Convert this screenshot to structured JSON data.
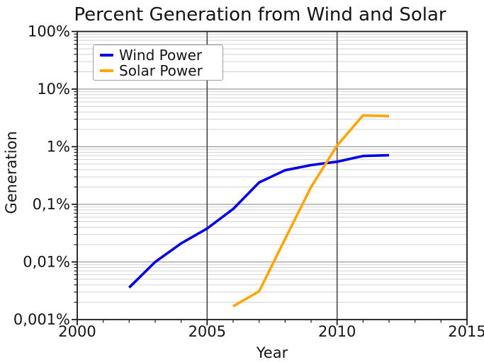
{
  "title": "Percent Generation from Wind and Solar",
  "chart_data": {
    "type": "line",
    "title": "Percent Generation from Wind and Solar",
    "xlabel": "Year",
    "ylabel": "Generation",
    "grid": true,
    "legend_position": "upper-left",
    "x_axis": {
      "min": 2000,
      "max": 2015,
      "major_ticks": [
        2000,
        2005,
        2010,
        2015
      ],
      "tick_labels": [
        "2000",
        "2005",
        "2010",
        "2015"
      ],
      "minor_tick_step_years": 1,
      "major_gridlines_at": [
        2005,
        2010
      ]
    },
    "y_axis": {
      "scale": "log",
      "min_pct": 0.001,
      "max_pct": 100,
      "major_ticks_pct": [
        100,
        10,
        1,
        0.1,
        0.01,
        0.001
      ],
      "tick_labels": [
        "100%",
        "10%",
        "1%",
        "0,1%",
        "0,01%",
        "0,001%"
      ],
      "decimal_separator": ","
    },
    "series": [
      {
        "name": "Wind Power",
        "color": "#0000e6",
        "x": [
          2002,
          2003,
          2004,
          2005,
          2006,
          2007,
          2008,
          2009,
          2010,
          2011,
          2012
        ],
        "values_pct": [
          0.0036,
          0.01,
          0.021,
          0.038,
          0.083,
          0.24,
          0.39,
          0.48,
          0.55,
          0.69,
          0.71
        ]
      },
      {
        "name": "Solar Power",
        "color": "#ffa500",
        "x": [
          2006,
          2007,
          2008,
          2009,
          2010,
          2011,
          2012
        ],
        "values_pct": [
          0.0017,
          0.0031,
          0.025,
          0.2,
          1.05,
          3.5,
          3.4
        ]
      }
    ]
  }
}
